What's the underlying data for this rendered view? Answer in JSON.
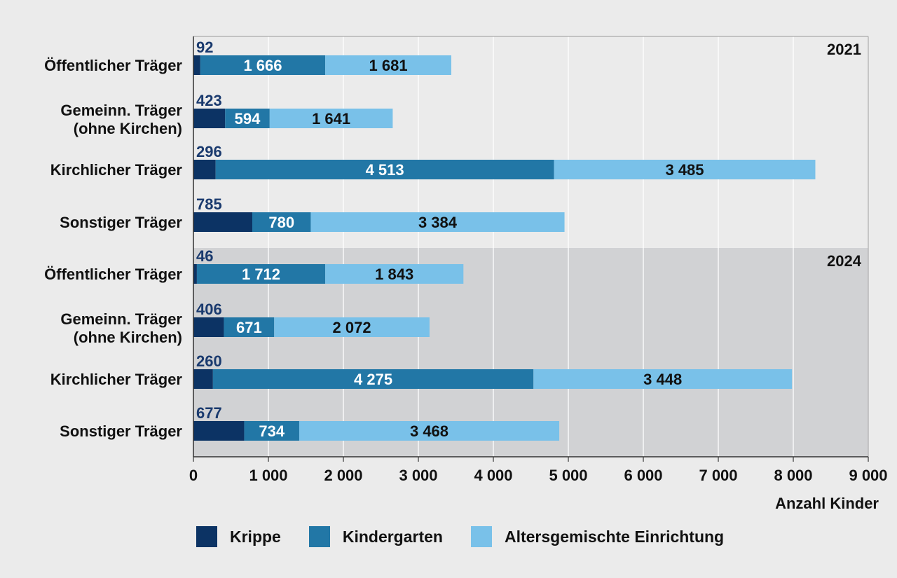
{
  "chart_data": {
    "type": "bar",
    "orientation": "horizontal",
    "stacked": true,
    "xlabel": "Anzahl Kinder",
    "xlim": [
      0,
      9000
    ],
    "xticks": [
      0,
      1000,
      2000,
      3000,
      4000,
      5000,
      6000,
      7000,
      8000,
      9000
    ],
    "xtick_labels": [
      "0",
      "1 000",
      "2 000",
      "3 000",
      "4 000",
      "5 000",
      "6 000",
      "7 000",
      "8 000",
      "9 000"
    ],
    "grid": true,
    "legend_position": "bottom",
    "colors": {
      "Krippe": "#0c3364",
      "Kindergarten": "#2277a6",
      "Altersgemischte Einrichtung": "#79c1e9",
      "panel_2024_bg": "#d1d2d4",
      "label_dark": "#1a3a6e"
    },
    "series": [
      {
        "name": "Krippe"
      },
      {
        "name": "Kindergarten"
      },
      {
        "name": "Altersgemischte Einrichtung"
      }
    ],
    "groups": [
      {
        "year": "2021",
        "rows": [
          {
            "label": [
              "Öffentlicher Träger"
            ],
            "values": [
              92,
              1666,
              1681
            ],
            "value_labels": [
              "92",
              "1 666",
              "1 681"
            ]
          },
          {
            "label": [
              "Gemeinn. Träger",
              "(ohne Kirchen)"
            ],
            "values": [
              423,
              594,
              1641
            ],
            "value_labels": [
              "423",
              "594",
              "1 641"
            ]
          },
          {
            "label": [
              "Kirchlicher Träger"
            ],
            "values": [
              296,
              4513,
              3485
            ],
            "value_labels": [
              "296",
              "4 513",
              "3 485"
            ]
          },
          {
            "label": [
              "Sonstiger Träger"
            ],
            "values": [
              785,
              780,
              3384
            ],
            "value_labels": [
              "785",
              "780",
              "3 384"
            ]
          }
        ]
      },
      {
        "year": "2024",
        "rows": [
          {
            "label": [
              "Öffentlicher Träger"
            ],
            "values": [
              46,
              1712,
              1843
            ],
            "value_labels": [
              "46",
              "1 712",
              "1 843"
            ]
          },
          {
            "label": [
              "Gemeinn. Träger",
              "(ohne Kirchen)"
            ],
            "values": [
              406,
              671,
              2072
            ],
            "value_labels": [
              "406",
              "671",
              "2 072"
            ]
          },
          {
            "label": [
              "Kirchlicher Träger"
            ],
            "values": [
              260,
              4275,
              3448
            ],
            "value_labels": [
              "260",
              "4 275",
              "3 448"
            ]
          },
          {
            "label": [
              "Sonstiger Träger"
            ],
            "values": [
              677,
              734,
              3468
            ],
            "value_labels": [
              "677",
              "734",
              "3 468"
            ]
          }
        ]
      }
    ]
  }
}
